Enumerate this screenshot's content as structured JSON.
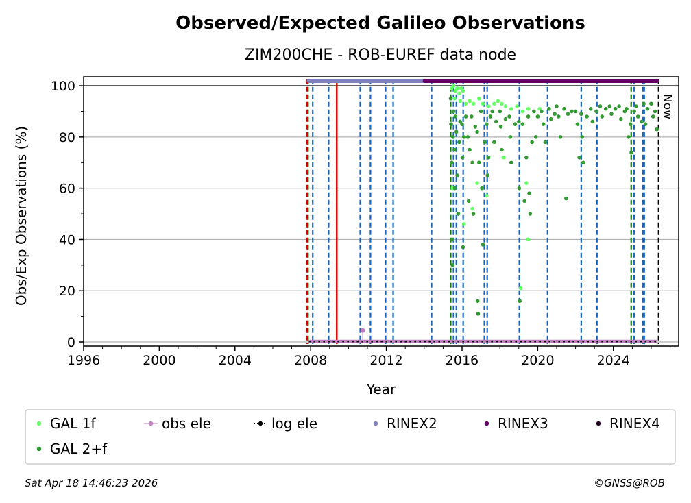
{
  "chart_data": {
    "type": "scatter",
    "title": "Observed/Expected Galileo Observations",
    "subtitle": "ZIM200CHE - ROB-EUREF data node",
    "xlabel": "Year",
    "ylabel": "Obs/Exp Observations (%)",
    "xlim": [
      1996,
      2027.45
    ],
    "ylim": [
      -1.6,
      103.5
    ],
    "xticks": [
      1996,
      2000,
      2004,
      2008,
      2012,
      2016,
      2020,
      2024
    ],
    "xtick_labels": [
      "1996",
      "2000",
      "2004",
      "2008",
      "2012",
      "2016",
      "2020",
      "2024"
    ],
    "yticks": [
      0,
      20,
      40,
      60,
      80,
      100
    ],
    "ytick_labels": [
      "0",
      "20",
      "40",
      "60",
      "80",
      "100"
    ],
    "grid": "horizontal",
    "now_label": "Now",
    "now_year": 2026.39,
    "legend_placement": "bottom",
    "legend": [
      {
        "label": "GAL 1f",
        "color": "#66ff66",
        "style": "dot"
      },
      {
        "label": "obs ele",
        "color": "#c080c0",
        "style": "line-dot"
      },
      {
        "label": "log ele",
        "color": "#000000",
        "style": "dotted-dot"
      },
      {
        "label": "RINEX2",
        "color": "#8080c0",
        "style": "dot"
      },
      {
        "label": "RINEX3",
        "color": "#660066",
        "style": "dot"
      },
      {
        "label": "RINEX4",
        "color": "#220022",
        "style": "dot"
      },
      {
        "label": "GAL 2+f",
        "color": "#339933",
        "style": "dot"
      }
    ],
    "rinex_bars": [
      {
        "name": "RINEX2",
        "from": 2007.9,
        "to": 2014.03,
        "y": 101.9,
        "color": "#8080c0"
      },
      {
        "name": "RINEX3",
        "from": 2014.03,
        "to": 2026.3,
        "y": 101.9,
        "color": "#660066"
      }
    ],
    "red_lines": [
      2007.86,
      2009.38
    ],
    "green_dashed": [
      2007.86,
      2015.4,
      2024.94
    ],
    "blue_dashed": [
      2008.11,
      2008.95,
      2010.62,
      2011.16,
      2011.96,
      2012.36,
      2014.39,
      2015.55,
      2015.7,
      2016.06,
      2017.18,
      2017.33,
      2019.03,
      2020.52,
      2022.3,
      2023.13,
      2025.09,
      2025.56,
      2025.63
    ],
    "obs_ele": {
      "line": {
        "from": 2007.9,
        "to": 2026.3,
        "value": 0.2
      },
      "points": [
        [
          2010.75,
          4.5
        ]
      ]
    },
    "log_ele": {
      "from": 2007.9,
      "to": 2026.3,
      "value": 0.2
    },
    "series": [
      {
        "name": "GAL 1f",
        "color": "#66ff66",
        "points": [
          [
            2015.45,
            99
          ],
          [
            2015.55,
            100
          ],
          [
            2015.65,
            98
          ],
          [
            2015.75,
            99
          ],
          [
            2015.85,
            97
          ],
          [
            2015.95,
            99
          ],
          [
            2016.05,
            98
          ],
          [
            2015.6,
            95
          ],
          [
            2015.9,
            94
          ],
          [
            2016.2,
            93
          ],
          [
            2016.4,
            94
          ],
          [
            2016.6,
            93
          ],
          [
            2016.9,
            95
          ],
          [
            2017.1,
            93
          ],
          [
            2017.4,
            92
          ],
          [
            2017.7,
            93
          ],
          [
            2017.9,
            94
          ],
          [
            2018.1,
            93
          ],
          [
            2018.3,
            92
          ],
          [
            2018.6,
            91
          ],
          [
            2018.9,
            92
          ],
          [
            2019.2,
            90
          ],
          [
            2019.5,
            91
          ],
          [
            2019.8,
            90
          ],
          [
            2020.1,
            91
          ],
          [
            2016.1,
            46
          ],
          [
            2016.8,
            62
          ],
          [
            2017.3,
            57
          ],
          [
            2019.1,
            21
          ],
          [
            2019.5,
            40
          ],
          [
            2019.4,
            62
          ],
          [
            2015.5,
            60
          ],
          [
            2016.55,
            52
          ],
          [
            2018.2,
            72
          ]
        ]
      },
      {
        "name": "GAL 2+f",
        "color": "#339933",
        "points": [
          [
            2015.4,
            95
          ],
          [
            2015.42,
            85
          ],
          [
            2015.45,
            70
          ],
          [
            2015.48,
            40
          ],
          [
            2015.5,
            30
          ],
          [
            2015.52,
            80
          ],
          [
            2015.55,
            90
          ],
          [
            2015.6,
            75
          ],
          [
            2015.62,
            60
          ],
          [
            2015.65,
            88
          ],
          [
            2015.7,
            82
          ],
          [
            2015.75,
            65
          ],
          [
            2015.8,
            50
          ],
          [
            2015.85,
            78
          ],
          [
            2015.9,
            86
          ],
          [
            2016.0,
            85
          ],
          [
            2016.02,
            72
          ],
          [
            2016.05,
            37
          ],
          [
            2016.1,
            80
          ],
          [
            2016.2,
            88
          ],
          [
            2016.3,
            80
          ],
          [
            2016.35,
            55
          ],
          [
            2016.4,
            75
          ],
          [
            2016.5,
            88
          ],
          [
            2016.55,
            70
          ],
          [
            2016.6,
            50
          ],
          [
            2016.7,
            84
          ],
          [
            2016.8,
            82
          ],
          [
            2016.82,
            16
          ],
          [
            2016.85,
            11
          ],
          [
            2016.9,
            70
          ],
          [
            2017.0,
            90
          ],
          [
            2017.05,
            60
          ],
          [
            2017.1,
            38
          ],
          [
            2017.2,
            78
          ],
          [
            2017.3,
            85
          ],
          [
            2017.35,
            65
          ],
          [
            2017.4,
            72
          ],
          [
            2017.5,
            88
          ],
          [
            2017.6,
            90
          ],
          [
            2017.7,
            78
          ],
          [
            2017.8,
            86
          ],
          [
            2018.0,
            90
          ],
          [
            2018.05,
            84
          ],
          [
            2018.1,
            75
          ],
          [
            2018.3,
            87
          ],
          [
            2018.5,
            88
          ],
          [
            2018.55,
            80
          ],
          [
            2018.6,
            70
          ],
          [
            2018.8,
            85
          ],
          [
            2019.0,
            86
          ],
          [
            2019.02,
            60
          ],
          [
            2019.05,
            16
          ],
          [
            2019.2,
            85
          ],
          [
            2019.3,
            55
          ],
          [
            2019.4,
            72
          ],
          [
            2019.5,
            88
          ],
          [
            2019.55,
            58
          ],
          [
            2019.6,
            50
          ],
          [
            2019.7,
            78
          ],
          [
            2019.8,
            90
          ],
          [
            2019.9,
            80
          ],
          [
            2020.0,
            88
          ],
          [
            2020.2,
            90
          ],
          [
            2020.3,
            85
          ],
          [
            2020.4,
            78
          ],
          [
            2020.6,
            91
          ],
          [
            2020.7,
            87
          ],
          [
            2020.9,
            89
          ],
          [
            2021.0,
            92
          ],
          [
            2021.1,
            88
          ],
          [
            2021.2,
            80
          ],
          [
            2021.4,
            91
          ],
          [
            2021.5,
            56
          ],
          [
            2021.6,
            89
          ],
          [
            2021.8,
            90
          ],
          [
            2022.0,
            90
          ],
          [
            2022.1,
            85
          ],
          [
            2022.2,
            72
          ],
          [
            2022.3,
            89
          ],
          [
            2022.35,
            80
          ],
          [
            2022.4,
            70
          ],
          [
            2022.6,
            88
          ],
          [
            2022.8,
            91
          ],
          [
            2022.9,
            86
          ],
          [
            2023.1,
            90
          ],
          [
            2023.3,
            92
          ],
          [
            2023.4,
            88
          ],
          [
            2023.6,
            91
          ],
          [
            2023.8,
            92
          ],
          [
            2023.9,
            89
          ],
          [
            2024.1,
            91
          ],
          [
            2024.3,
            92
          ],
          [
            2024.4,
            87
          ],
          [
            2024.6,
            90
          ],
          [
            2024.7,
            91
          ],
          [
            2024.8,
            80
          ],
          [
            2024.9,
            85
          ],
          [
            2024.95,
            74
          ],
          [
            2025.1,
            90
          ],
          [
            2025.2,
            92
          ],
          [
            2025.3,
            88
          ],
          [
            2025.5,
            86
          ],
          [
            2025.6,
            93
          ],
          [
            2025.7,
            85
          ],
          [
            2025.8,
            91
          ],
          [
            2026.0,
            93
          ],
          [
            2026.1,
            88
          ],
          [
            2026.2,
            90
          ],
          [
            2026.3,
            83
          ]
        ]
      }
    ]
  },
  "footer": {
    "timestamp": "Sat Apr 18 14:46:23 2026",
    "credit": "©GNSS@ROB"
  }
}
